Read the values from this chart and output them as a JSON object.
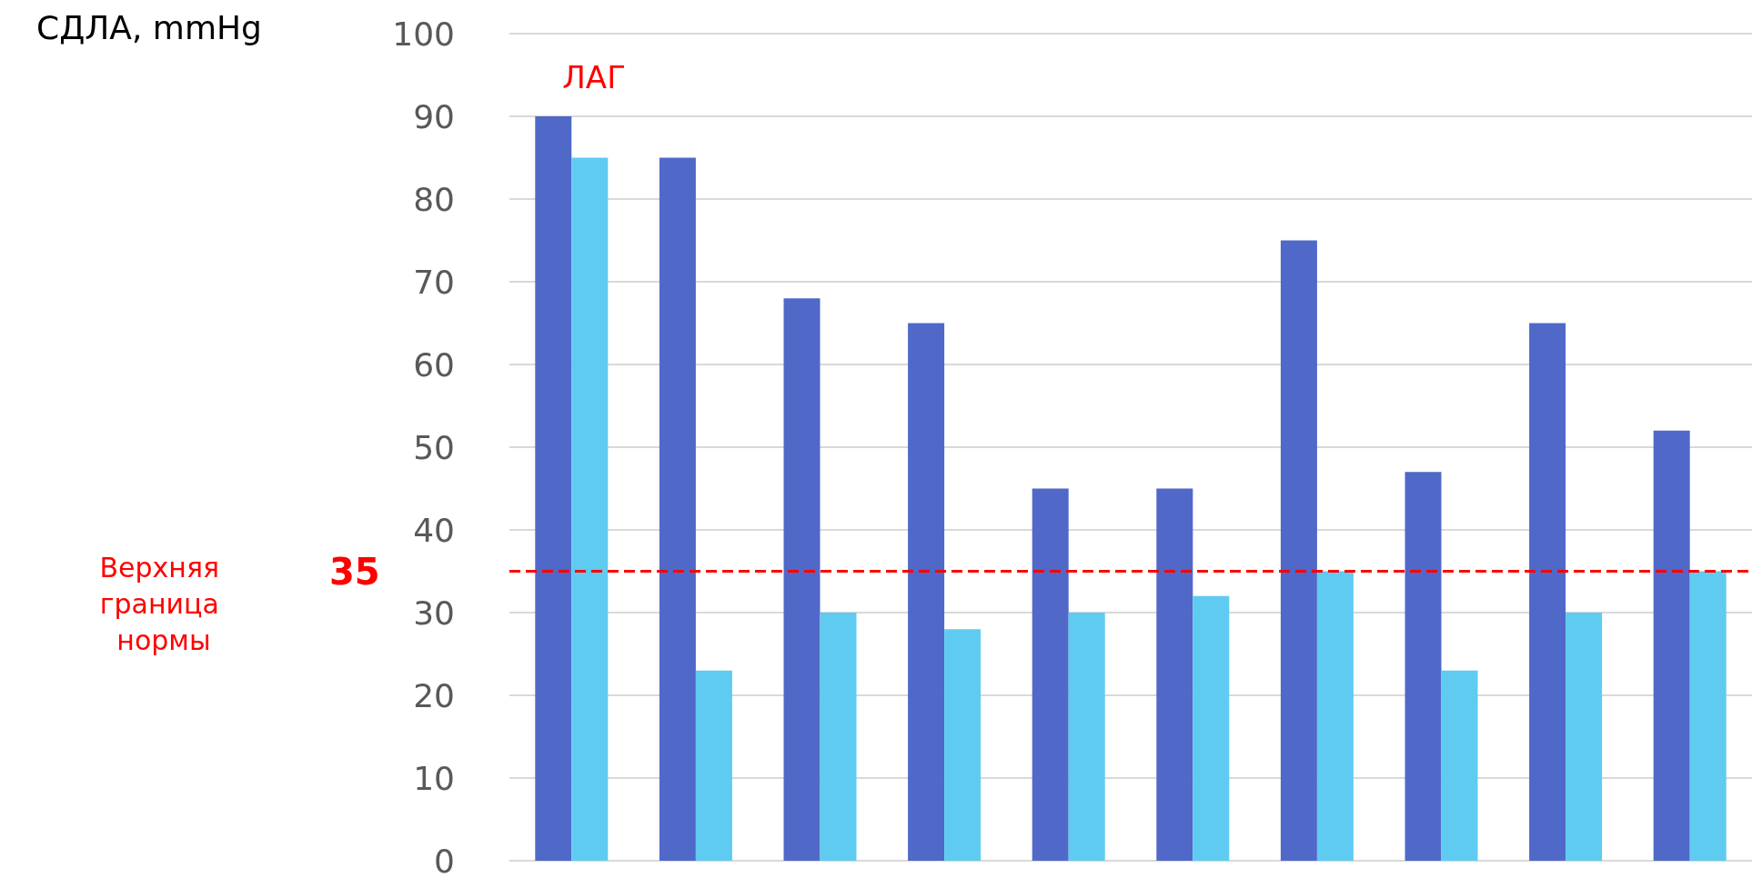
{
  "chart_data": {
    "type": "bar",
    "ylabel": "СДЛА, mmHg",
    "categories": [
      null,
      null,
      null,
      null,
      null,
      null,
      null,
      null,
      null,
      null
    ],
    "series": [
      {
        "color": "#5068c8",
        "values": [
          90,
          85,
          68,
          65,
          45,
          45,
          75,
          47,
          65,
          52
        ]
      },
      {
        "color": "#5fcbf1",
        "values": [
          85,
          23,
          30,
          28,
          30,
          32,
          35,
          23,
          30,
          35
        ]
      }
    ],
    "ylim": [
      0,
      100
    ],
    "yticks": [
      0,
      10,
      20,
      30,
      40,
      50,
      60,
      70,
      80,
      90,
      100
    ],
    "grid": "y",
    "ref_lines": [
      {
        "axis": "y",
        "value": 35,
        "label": "Верхняя граница нормы",
        "color": "#ff0000",
        "line_style": "dashed"
      }
    ],
    "annotations": [
      "ЛАГ",
      "35"
    ]
  }
}
